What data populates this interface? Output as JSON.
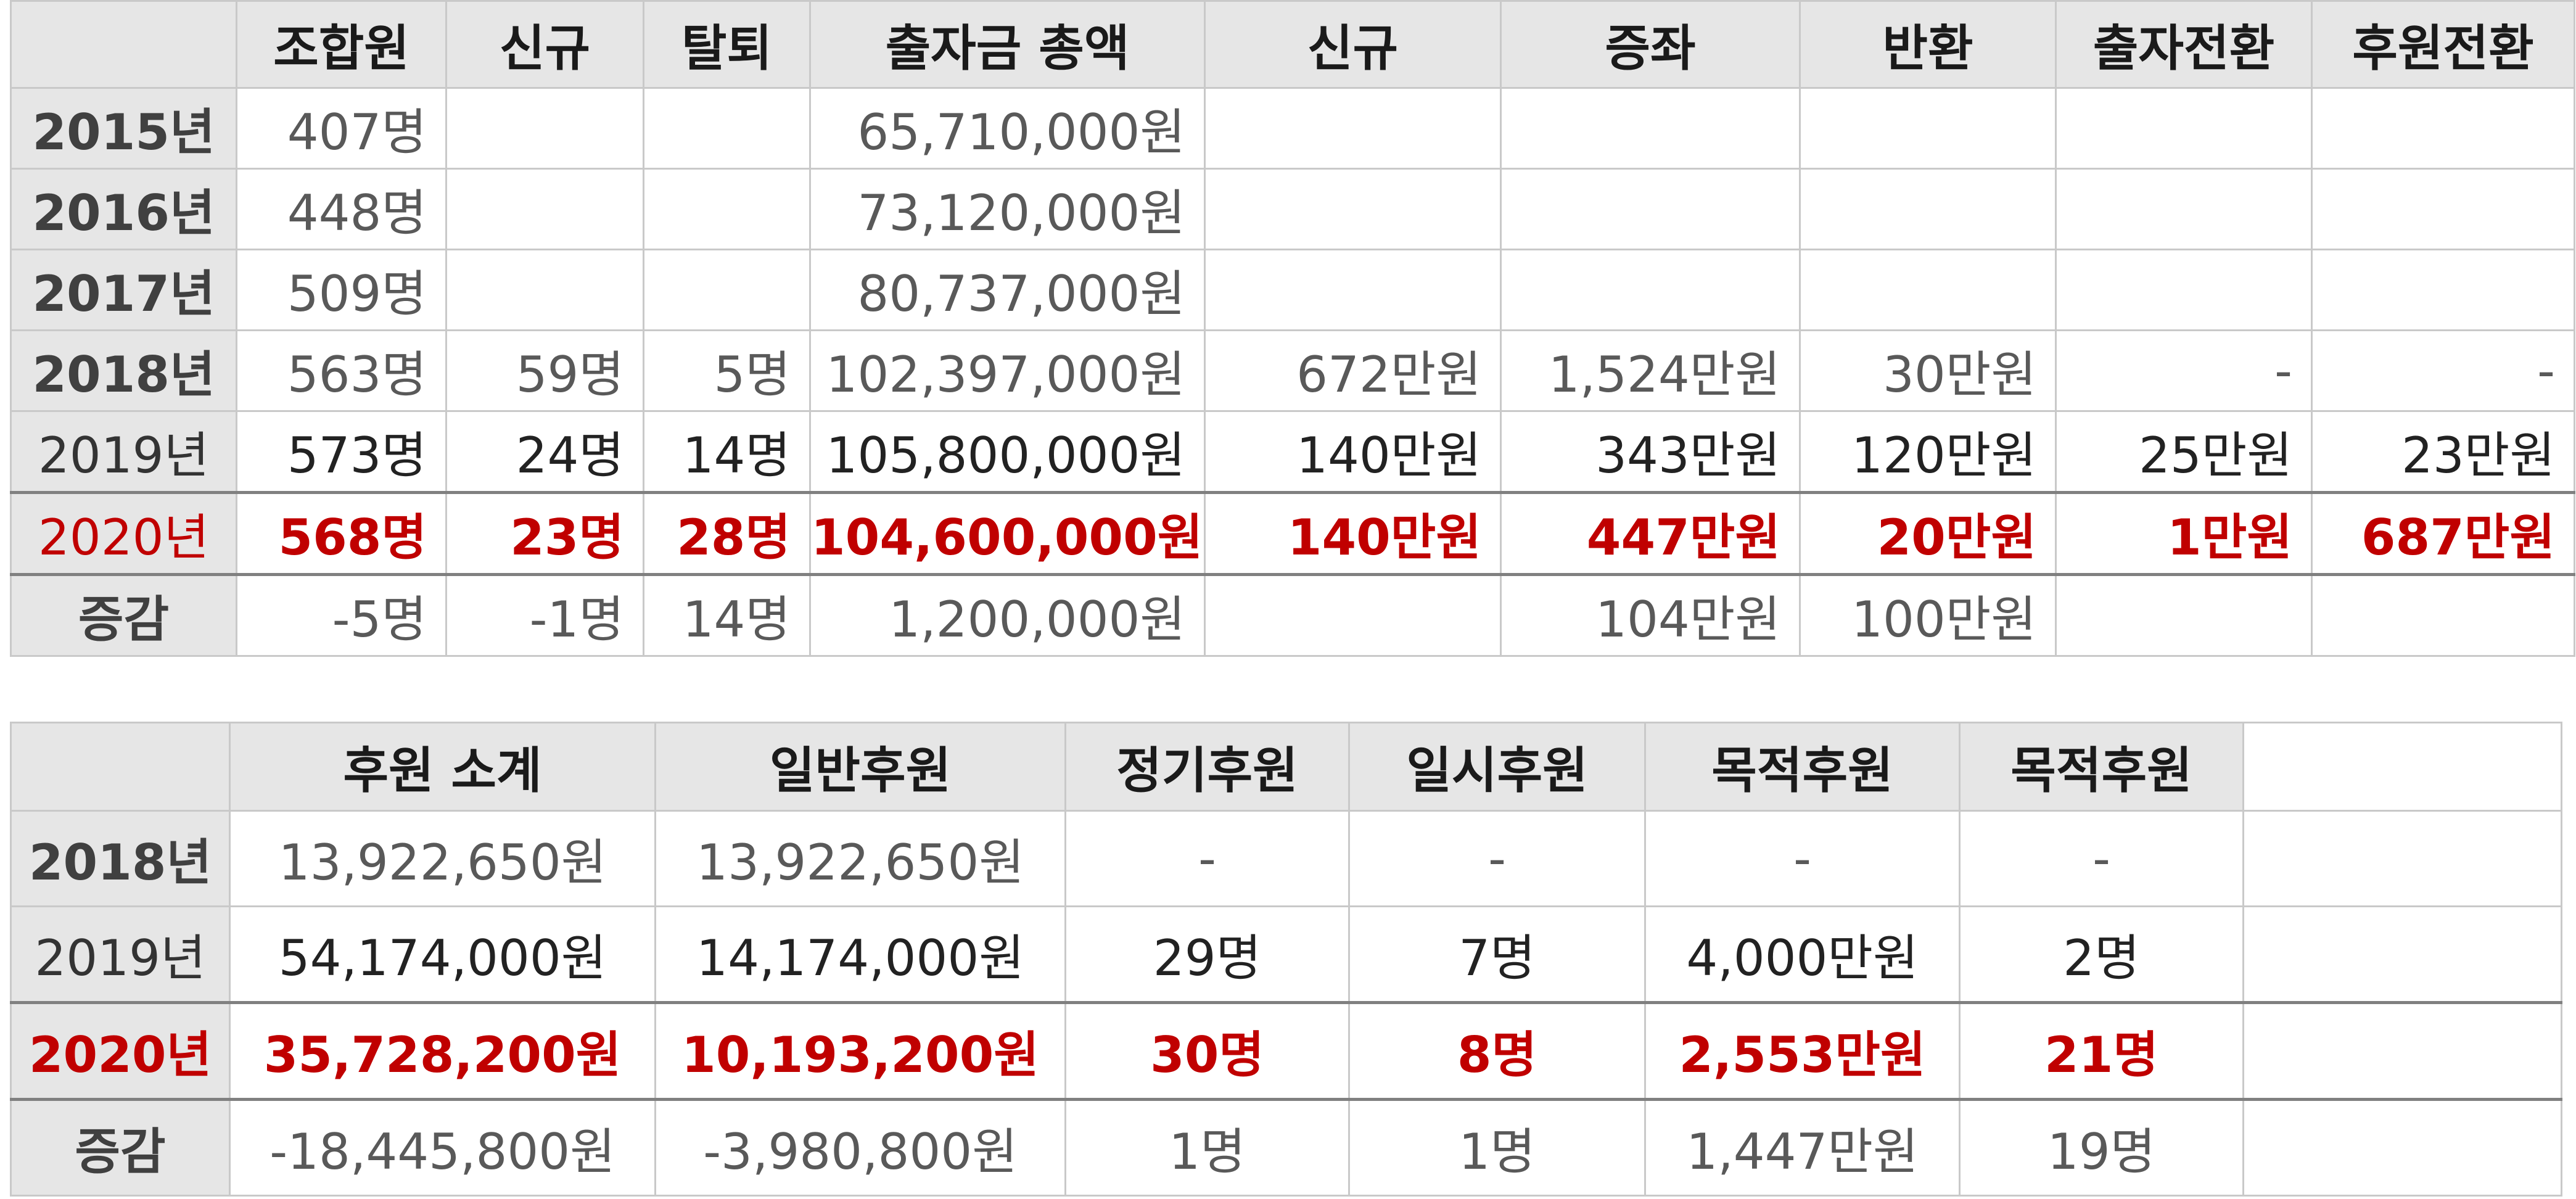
{
  "table1": {
    "headers": [
      "",
      "조합원",
      "신규",
      "탈퇴",
      "출자금 총액",
      "신규",
      "증좌",
      "반환",
      "출자전환",
      "후원전환"
    ],
    "rows": [
      {
        "year": "2015년",
        "cells": [
          "407명",
          "",
          "",
          "65,710,000원",
          "",
          "",
          "",
          "",
          ""
        ]
      },
      {
        "year": "2016년",
        "cells": [
          "448명",
          "",
          "",
          "73,120,000원",
          "",
          "",
          "",
          "",
          ""
        ]
      },
      {
        "year": "2017년",
        "cells": [
          "509명",
          "",
          "",
          "80,737,000원",
          "",
          "",
          "",
          "",
          ""
        ]
      },
      {
        "year": "2018년",
        "cells": [
          "563명",
          "59명",
          "5명",
          "102,397,000원",
          "672만원",
          "1,524만원",
          "30만원",
          "-",
          "-"
        ]
      },
      {
        "year": "2019년",
        "cells": [
          "573명",
          "24명",
          "14명",
          "105,800,000원",
          "140만원",
          "343만원",
          "120만원",
          "25만원",
          "23만원"
        ]
      },
      {
        "year": "2020년",
        "cells": [
          "568명",
          "23명",
          "28명",
          "104,600,000원",
          "140만원",
          "447만원",
          "20만원",
          "1만원",
          "687만원"
        ]
      },
      {
        "year": "증감",
        "cells": [
          "-5명",
          "-1명",
          "14명",
          "1,200,000원",
          "",
          "104만원",
          "100만원",
          "",
          ""
        ]
      }
    ]
  },
  "table2": {
    "headers": [
      "",
      "후원 소계",
      "일반후원",
      "정기후원",
      "일시후원",
      "목적후원",
      "목적후원",
      ""
    ],
    "rows": [
      {
        "year": "2018년",
        "cells": [
          "13,922,650원",
          "13,922,650원",
          "-",
          "-",
          "-",
          "-",
          ""
        ]
      },
      {
        "year": "2019년",
        "cells": [
          "54,174,000원",
          "14,174,000원",
          "29명",
          "7명",
          "4,000만원",
          "2명",
          ""
        ]
      },
      {
        "year": "2020년",
        "cells": [
          "35,728,200원",
          "10,193,200원",
          "30명",
          "8명",
          "2,553만원",
          "21명",
          ""
        ]
      },
      {
        "year": "증감",
        "cells": [
          "-18,445,800원",
          "-3,980,800원",
          "1명",
          "1명",
          "1,447만원",
          "19명",
          ""
        ]
      }
    ]
  },
  "colors": {
    "highlight": "#c00000",
    "header_bg": "#e6e6e6",
    "border": "#c9c9c9"
  }
}
